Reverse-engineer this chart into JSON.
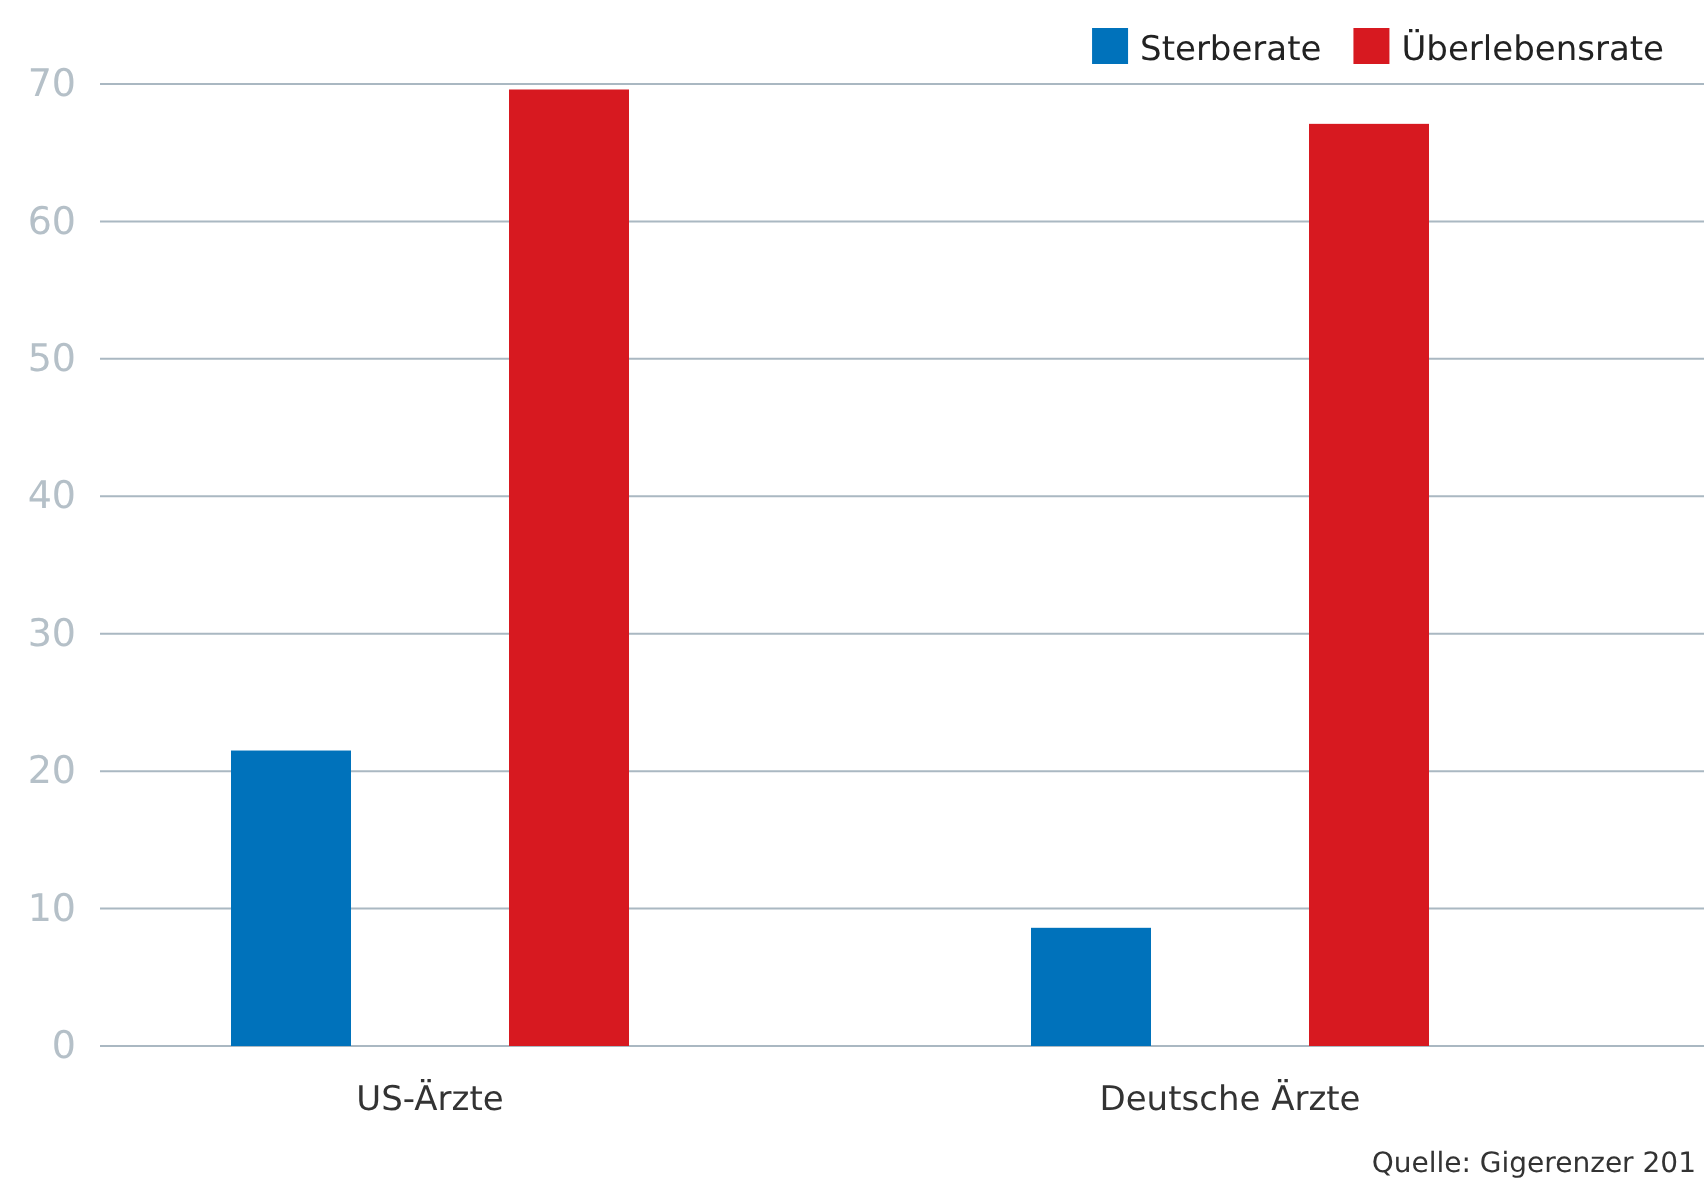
{
  "chart_data": {
    "type": "bar",
    "categories": [
      "US-Ärzte",
      "Deutsche Ärzte"
    ],
    "series": [
      {
        "name": "Sterberate",
        "color": "#0072bb",
        "values": [
          21.5,
          8.6
        ]
      },
      {
        "name": "Überlebensrate",
        "color": "#d71920",
        "values": [
          69.6,
          67.1
        ]
      }
    ],
    "ylim": [
      0,
      70
    ],
    "yticks": [
      0,
      10,
      20,
      30,
      40,
      50,
      60,
      70
    ],
    "grid": "y",
    "legend": "top right",
    "annotations": [
      "Quelle: Gigerenzer 201"
    ]
  }
}
